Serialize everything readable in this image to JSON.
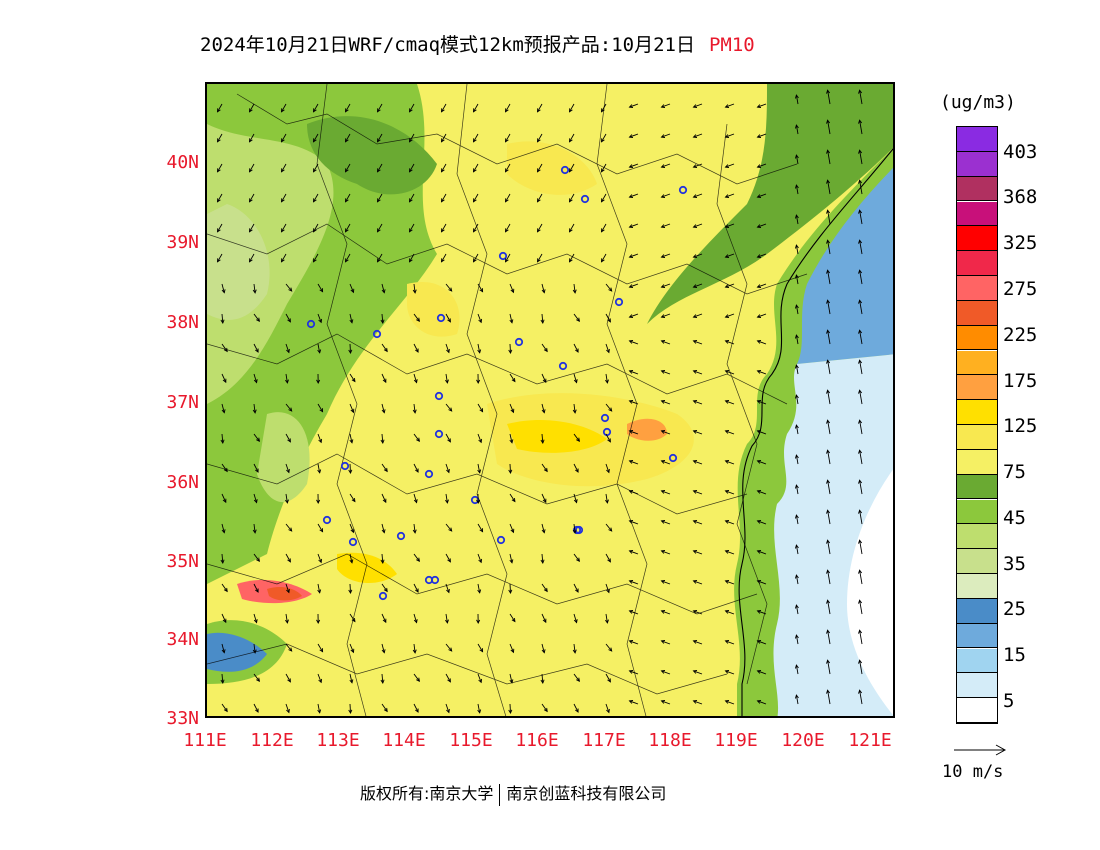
{
  "title": {
    "main": "2024年10月21日WRF/cmaq模式12km预报产品:10月21日",
    "variable": "PM10"
  },
  "map": {
    "y_axis_labels": [
      "40N",
      "39N",
      "38N",
      "37N",
      "36N",
      "35N",
      "34N",
      "33N"
    ],
    "x_axis_labels": [
      "111E",
      "112E",
      "113E",
      "114E",
      "115E",
      "116E",
      "117E",
      "118E",
      "119E",
      "120E",
      "121E"
    ]
  },
  "legend": {
    "unit": "(ug/m3)",
    "labels": [
      "403",
      "368",
      "325",
      "275",
      "225",
      "175",
      "125",
      "75",
      "45",
      "35",
      "25",
      "15",
      "5"
    ],
    "colors": [
      "#8a2be2",
      "#9b30d0",
      "#b03060",
      "#c8107a",
      "#ff0000",
      "#f0284a",
      "#ff6464",
      "#f05a28",
      "#ff8c00",
      "#ffb020",
      "#ffa040",
      "#ffe000",
      "#f8e850",
      "#f5f064",
      "#6aaa32",
      "#8cc83c",
      "#bede6e",
      "#c8e08c",
      "#dcecbe",
      "#4a8cc8",
      "#6eaadc",
      "#a0d4f0",
      "#d4ecf8",
      "#ffffff"
    ]
  },
  "wind_reference": {
    "speed_label": "10 m/s"
  },
  "credit": {
    "left": "版权所有:南京大学",
    "right": "南京创蓝科技有限公司"
  }
}
